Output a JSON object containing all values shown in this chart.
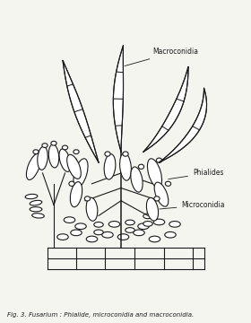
{
  "title": "Fig. 3. Fusarium : Phialide, microconidia and macroconidia.",
  "label_macroconidia": "Macroconidia",
  "label_phialides": "Phialides",
  "label_microconidia": "Microconidia",
  "bg_color": "#f5f5f0",
  "line_color": "#1a1a1a",
  "lw": 0.8,
  "figsize": [
    2.8,
    3.6
  ],
  "dpi": 100
}
